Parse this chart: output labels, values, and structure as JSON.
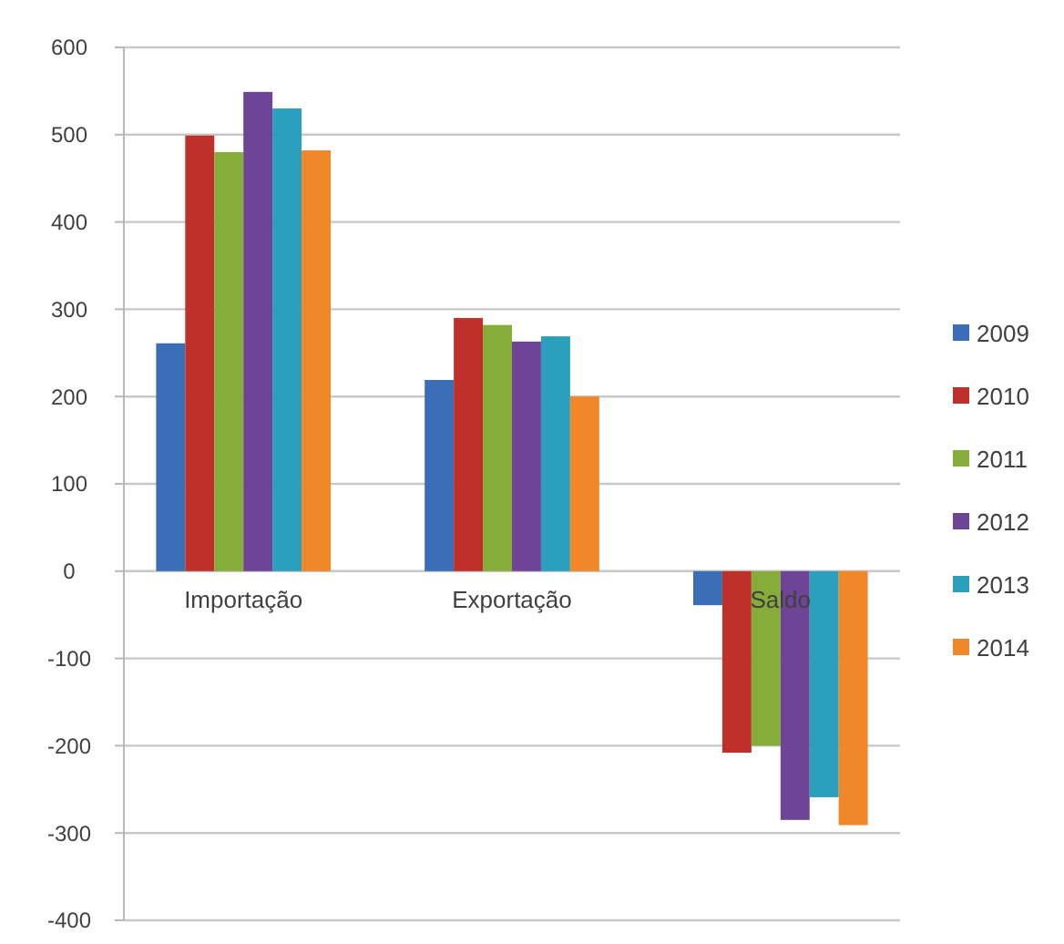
{
  "chart_data": {
    "type": "bar",
    "categories": [
      "Importação",
      "Exportação",
      "Saldo"
    ],
    "series": [
      {
        "name": "2009",
        "color": "#3a6fb8",
        "values": [
          261,
          219,
          -39
        ]
      },
      {
        "name": "2010",
        "color": "#c0302a",
        "values": [
          499,
          290,
          -208
        ]
      },
      {
        "name": "2011",
        "color": "#86ad3a",
        "values": [
          480,
          282,
          -200
        ]
      },
      {
        "name": "2012",
        "color": "#6e4596",
        "values": [
          549,
          263,
          -285
        ]
      },
      {
        "name": "2013",
        "color": "#2aa0bc",
        "values": [
          530,
          269,
          -259
        ]
      },
      {
        "name": "2014",
        "color": "#f0882a",
        "values": [
          482,
          200,
          -291
        ]
      }
    ],
    "ylim": [
      -400,
      600
    ],
    "yticks": [
      -400,
      -300,
      -200,
      -100,
      0,
      100,
      200,
      300,
      400,
      500,
      600
    ],
    "grid": "y",
    "legend": "right"
  }
}
